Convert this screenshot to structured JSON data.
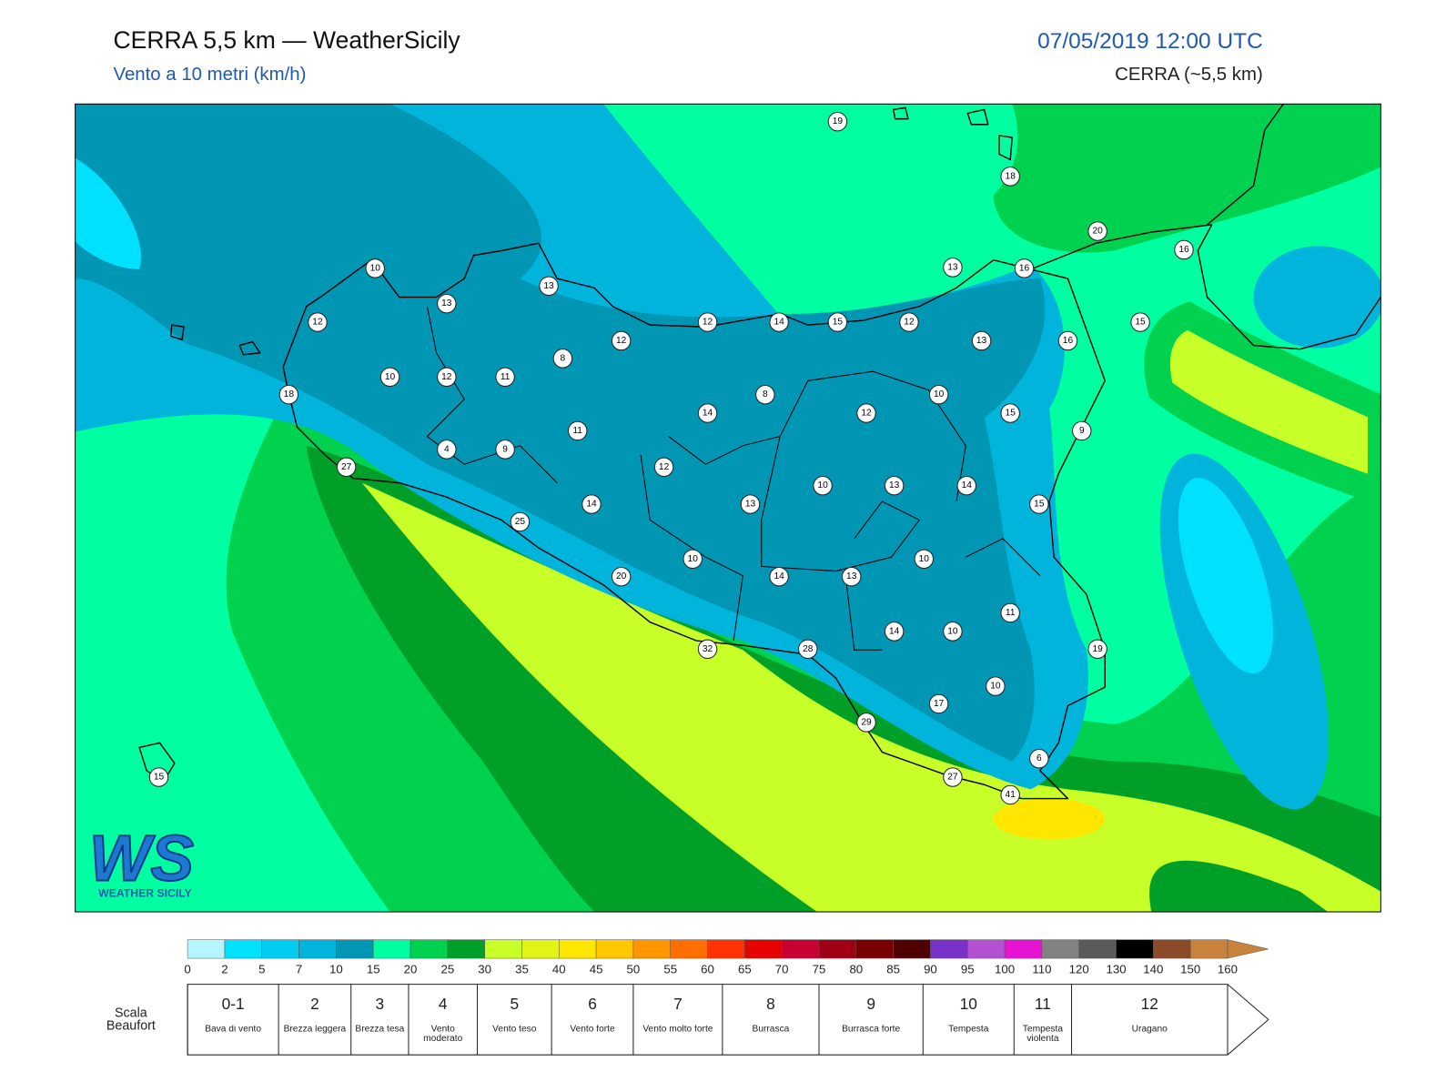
{
  "header": {
    "title": "CERRA 5,5 km — WeatherSicily",
    "subtitle": "Vento a 10 metri (km/h)",
    "date": "07/05/2019 12:00 UTC",
    "model": "CERRA (~5,5 km)"
  },
  "stations": [
    19,
    18,
    20,
    16,
    13,
    16,
    10,
    13,
    13,
    12,
    12,
    12,
    14,
    15,
    12,
    15,
    13,
    16,
    8,
    10,
    12,
    11,
    18,
    8,
    14,
    12,
    10,
    15,
    9,
    11,
    4,
    9,
    27,
    12,
    10,
    13,
    14,
    14,
    13,
    15,
    25,
    10,
    10,
    20,
    14,
    13,
    11,
    14,
    10,
    32,
    28,
    19,
    10,
    17,
    29,
    6,
    27,
    41,
    15
  ],
  "logo": {
    "mark": "WS",
    "text": "WEATHER SICILY"
  },
  "colorbar": {
    "ticks": [
      0,
      2,
      5,
      7,
      10,
      15,
      20,
      25,
      30,
      35,
      40,
      45,
      50,
      55,
      60,
      65,
      70,
      75,
      80,
      85,
      90,
      95,
      100,
      110,
      120,
      130,
      140,
      150,
      160
    ],
    "colors": [
      "#b4f5ff",
      "#00e1ff",
      "#00cdf0",
      "#00b4dc",
      "#0096b4",
      "#00ffa0",
      "#00d250",
      "#00a028",
      "#c8ff28",
      "#e1f514",
      "#ffe600",
      "#ffc800",
      "#ff9600",
      "#ff6e00",
      "#ff3200",
      "#e60000",
      "#c80032",
      "#a00014",
      "#780000",
      "#500000",
      "#7832c8",
      "#b450d2",
      "#e614d2",
      "#828282",
      "#5a5a5a",
      "#000000",
      "#8c4b28",
      "#c8823c"
    ]
  },
  "beaufort": {
    "label": "Scala Beaufort",
    "levels": [
      {
        "force": "0-1",
        "name": "Bava di vento"
      },
      {
        "force": "2",
        "name": "Brezza leggera"
      },
      {
        "force": "3",
        "name": "Brezza tesa"
      },
      {
        "force": "4",
        "name": "Vento moderato"
      },
      {
        "force": "5",
        "name": "Vento teso"
      },
      {
        "force": "6",
        "name": "Vento forte"
      },
      {
        "force": "7",
        "name": "Vento molto forte"
      },
      {
        "force": "8",
        "name": "Burrasca"
      },
      {
        "force": "9",
        "name": "Burrasca forte"
      },
      {
        "force": "10",
        "name": "Tempesta"
      },
      {
        "force": "11",
        "name": "Tempesta violenta"
      },
      {
        "force": "12",
        "name": "Uragano"
      }
    ]
  }
}
